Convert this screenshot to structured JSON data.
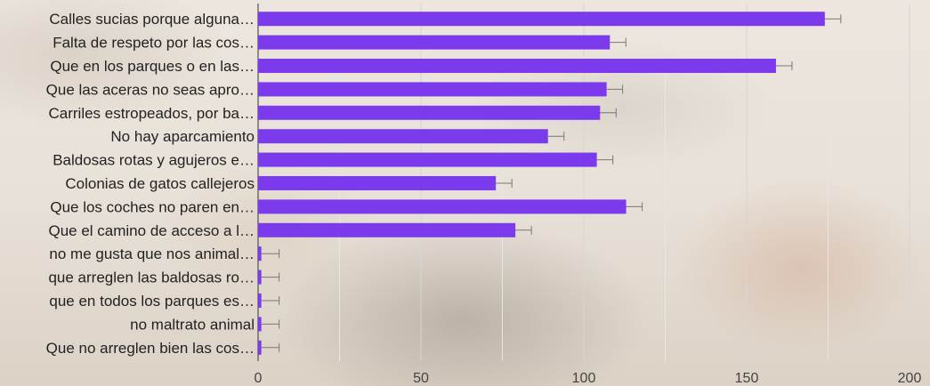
{
  "chart_data": {
    "type": "bar",
    "orientation": "horizontal",
    "categories": [
      "Calles sucias porque alguna…",
      "Falta de respeto por las cos…",
      "Que en los parques o en las…",
      "Que las aceras no seas apro…",
      "Carriles estropeados, por ba…",
      "No hay aparcamiento",
      "Baldosas rotas y agujeros e…",
      "Colonias de gatos callejeros",
      "Que los coches no paren en…",
      "Que el camino de acceso a l…",
      "no me gusta que nos animal…",
      "que arreglen las baldosas ro…",
      "que en todos los parques es…",
      "no maltrato animal",
      "Que no arreglen bien las cos…"
    ],
    "values": [
      174,
      108,
      159,
      107,
      105,
      89,
      104,
      73,
      113,
      79,
      1,
      1,
      1,
      1,
      1
    ],
    "xlim": [
      0,
      200
    ],
    "xticks": [
      0,
      50,
      100,
      150,
      200
    ],
    "bar_color": "#7c3aed",
    "grid": true,
    "error_bars": true,
    "legend": "none"
  }
}
